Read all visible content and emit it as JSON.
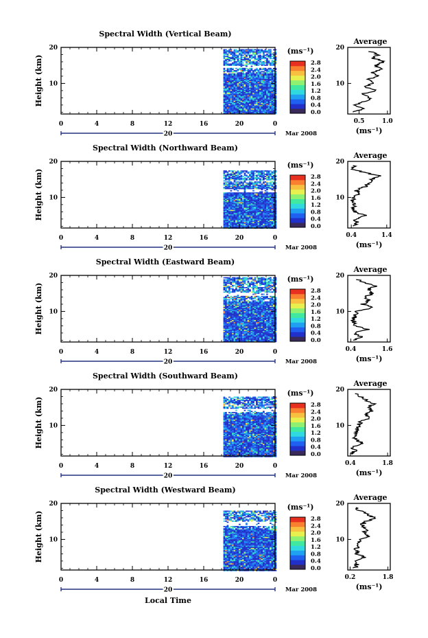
{
  "figure": {
    "xlabel": "Local Time",
    "date_label": "Mar 2008"
  },
  "colorbar": {
    "unit_label": "(ms⁻¹)",
    "ticks": [
      "2.8",
      "2.4",
      "2.0",
      "1.6",
      "1.2",
      "0.8",
      "0.4",
      "0.0"
    ],
    "colors": [
      "#3a2a5a",
      "#2030c8",
      "#2060f0",
      "#20a0f0",
      "#30d8e0",
      "#40e8a0",
      "#90f070",
      "#e8f050",
      "#f8c040",
      "#f88030",
      "#e83020"
    ]
  },
  "chart_data": [
    {
      "type": "heatmap",
      "title": "Spectral Width (Vertical Beam)",
      "ylabel": "Height (km)",
      "x_ticks": [
        "0",
        "4",
        "8",
        "12",
        "16",
        "20",
        "0"
      ],
      "day_label": "20",
      "y_ticks": [
        "10",
        "20"
      ],
      "xlim": [
        0,
        24
      ],
      "ylim": [
        1.5,
        20
      ],
      "data_x_range": [
        18.2,
        24
      ],
      "data_y_range": [
        1.5,
        19.5
      ],
      "gaps_km": [
        [
          14.5,
          15.2
        ]
      ],
      "avg_panel": {
        "title": "Average",
        "xlabel": "(ms⁻¹)",
        "x_ticks": [
          "0.5",
          "1.0"
        ],
        "xlim": [
          0.3,
          1.05
        ],
        "y_ticks": [
          "10",
          "20"
        ],
        "profile": [
          [
            0.4,
            2
          ],
          [
            0.55,
            3
          ],
          [
            0.45,
            4
          ],
          [
            0.6,
            5
          ],
          [
            0.7,
            6
          ],
          [
            0.55,
            7
          ],
          [
            0.8,
            8
          ],
          [
            0.6,
            9
          ],
          [
            0.75,
            10
          ],
          [
            0.65,
            11
          ],
          [
            0.85,
            12
          ],
          [
            0.7,
            13
          ],
          [
            0.9,
            14
          ],
          [
            0.8,
            15
          ],
          [
            0.95,
            16
          ],
          [
            0.75,
            17
          ],
          [
            0.85,
            18
          ],
          [
            0.65,
            19
          ]
        ]
      }
    },
    {
      "type": "heatmap",
      "title": "Spectral Width (Northward Beam)",
      "ylabel": "Height (km)",
      "x_ticks": [
        "0",
        "4",
        "8",
        "12",
        "16",
        "20",
        "0"
      ],
      "day_label": "20",
      "y_ticks": [
        "10",
        "20"
      ],
      "xlim": [
        0,
        24
      ],
      "ylim": [
        1.5,
        20
      ],
      "data_x_range": [
        18.2,
        24
      ],
      "data_y_range": [
        1.5,
        17.5
      ],
      "gaps_km": [
        [
          11.5,
          12.5
        ],
        [
          14.5,
          15.0
        ]
      ],
      "avg_panel": {
        "title": "Average",
        "xlabel": "(ms⁻¹)",
        "x_ticks": [
          "0.4",
          "1.4"
        ],
        "xlim": [
          0.3,
          1.5
        ],
        "y_ticks": [
          "10",
          "20"
        ],
        "profile": [
          [
            0.45,
            2
          ],
          [
            0.55,
            3
          ],
          [
            0.5,
            4
          ],
          [
            0.8,
            5
          ],
          [
            0.5,
            6
          ],
          [
            0.45,
            7
          ],
          [
            0.5,
            8
          ],
          [
            0.45,
            9
          ],
          [
            0.45,
            10
          ],
          [
            0.6,
            11
          ],
          [
            0.55,
            12
          ],
          [
            0.8,
            13
          ],
          [
            0.9,
            14
          ],
          [
            1.0,
            15
          ],
          [
            1.2,
            16
          ],
          [
            0.7,
            17
          ],
          [
            0.4,
            18
          ],
          [
            0.5,
            19
          ]
        ]
      }
    },
    {
      "type": "heatmap",
      "title": "Spectral Width (Eastward Beam)",
      "ylabel": "Height (km)",
      "x_ticks": [
        "0",
        "4",
        "8",
        "12",
        "16",
        "20",
        "0"
      ],
      "day_label": "20",
      "y_ticks": [
        "10",
        "20"
      ],
      "xlim": [
        0,
        24
      ],
      "ylim": [
        1.5,
        20
      ],
      "data_x_range": [
        18.2,
        24
      ],
      "data_y_range": [
        1.5,
        19.5
      ],
      "gaps_km": [
        [
          14.5,
          15.5
        ]
      ],
      "avg_panel": {
        "title": "Average",
        "xlabel": "(ms⁻¹)",
        "x_ticks": [
          "0.4",
          "1.6"
        ],
        "xlim": [
          0.3,
          1.7
        ],
        "y_ticks": [
          "10",
          "20"
        ],
        "profile": [
          [
            0.5,
            2
          ],
          [
            0.75,
            3
          ],
          [
            0.5,
            4
          ],
          [
            1.0,
            5
          ],
          [
            0.55,
            6
          ],
          [
            0.5,
            7
          ],
          [
            0.5,
            8
          ],
          [
            0.55,
            9
          ],
          [
            0.6,
            10
          ],
          [
            1.1,
            11
          ],
          [
            0.8,
            12
          ],
          [
            1.0,
            13
          ],
          [
            0.9,
            14
          ],
          [
            1.1,
            15
          ],
          [
            0.95,
            16
          ],
          [
            1.2,
            17
          ],
          [
            0.8,
            18
          ],
          [
            0.6,
            19
          ]
        ]
      }
    },
    {
      "type": "heatmap",
      "title": "Spectral Width (Southward Beam)",
      "ylabel": "Height (km)",
      "x_ticks": [
        "0",
        "4",
        "8",
        "12",
        "16",
        "20",
        "0"
      ],
      "day_label": "20",
      "y_ticks": [
        "10",
        "20"
      ],
      "xlim": [
        0,
        24
      ],
      "ylim": [
        1.5,
        20
      ],
      "data_x_range": [
        18.2,
        24
      ],
      "data_y_range": [
        1.5,
        18.0
      ],
      "gaps_km": [
        [
          14.0,
          14.8
        ]
      ],
      "avg_panel": {
        "title": "Average",
        "xlabel": "(ms⁻¹)",
        "x_ticks": [
          "0.4",
          "1.8"
        ],
        "xlim": [
          0.3,
          1.9
        ],
        "y_ticks": [
          "10",
          "20"
        ],
        "profile": [
          [
            0.45,
            2
          ],
          [
            0.55,
            3
          ],
          [
            0.5,
            4
          ],
          [
            0.9,
            5
          ],
          [
            0.6,
            6
          ],
          [
            0.55,
            7
          ],
          [
            0.6,
            8
          ],
          [
            0.65,
            9
          ],
          [
            0.7,
            10
          ],
          [
            0.8,
            11
          ],
          [
            1.1,
            12
          ],
          [
            1.0,
            13
          ],
          [
            1.2,
            14
          ],
          [
            1.05,
            15
          ],
          [
            1.3,
            16
          ],
          [
            1.0,
            17
          ],
          [
            0.8,
            18
          ],
          [
            0.6,
            19
          ]
        ]
      }
    },
    {
      "type": "heatmap",
      "title": "Spectral Width (Westward Beam)",
      "ylabel": "Height (km)",
      "x_ticks": [
        "0",
        "4",
        "8",
        "12",
        "16",
        "20",
        "0"
      ],
      "day_label": "20",
      "y_ticks": [
        "10",
        "20"
      ],
      "xlim": [
        0,
        24
      ],
      "ylim": [
        1.5,
        20
      ],
      "data_x_range": [
        18.2,
        24
      ],
      "data_y_range": [
        1.5,
        18.0
      ],
      "gaps_km": [
        [
          14.0,
          15.0
        ]
      ],
      "avg_panel": {
        "title": "Average",
        "xlabel": "(ms⁻¹)",
        "x_ticks": [
          "0.2",
          "1.8"
        ],
        "xlim": [
          0.1,
          1.9
        ],
        "y_ticks": [
          "10",
          "20"
        ],
        "profile": [
          [
            0.4,
            2
          ],
          [
            0.5,
            3
          ],
          [
            0.45,
            4
          ],
          [
            0.8,
            5
          ],
          [
            0.5,
            6
          ],
          [
            0.45,
            7
          ],
          [
            0.5,
            8
          ],
          [
            0.55,
            9
          ],
          [
            0.6,
            10
          ],
          [
            1.0,
            11
          ],
          [
            0.8,
            12
          ],
          [
            0.9,
            13
          ],
          [
            0.7,
            14
          ],
          [
            0.85,
            15
          ],
          [
            1.3,
            16
          ],
          [
            0.9,
            17
          ],
          [
            0.6,
            18
          ],
          [
            0.45,
            19
          ]
        ]
      }
    }
  ]
}
